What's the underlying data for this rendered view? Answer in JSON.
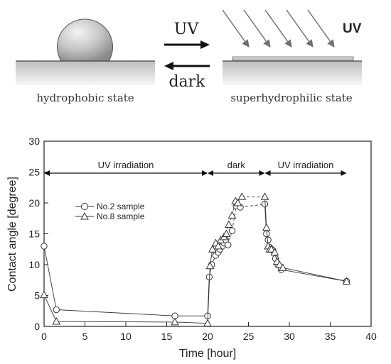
{
  "illustration": {
    "left_caption": "hydrophobic state",
    "right_caption": "superhydrophilic state",
    "arrow_top_label": "UV",
    "arrow_bottom_label": "dark",
    "uv_label": "UV"
  },
  "chart_data": {
    "type": "line",
    "xlabel": "Time [hour]",
    "ylabel": "Contact angle [degree]",
    "xlim": [
      0,
      40
    ],
    "ylim": [
      0,
      30
    ],
    "xticks": [
      "0",
      "5",
      "10",
      "15",
      "20",
      "25",
      "30",
      "35",
      "40"
    ],
    "yticks": [
      "0",
      "5",
      "10",
      "15",
      "20",
      "25",
      "30"
    ],
    "grid": false,
    "legend_position": "middle-left",
    "phases": [
      {
        "label": "UV irradiation",
        "x_start": 0,
        "x_end": 20
      },
      {
        "label": "dark",
        "x_start": 20,
        "x_end": 27
      },
      {
        "label": "UV irradiation",
        "x_start": 27,
        "x_end": 37
      }
    ],
    "series": [
      {
        "name": "No.2 sample",
        "marker": "circle",
        "x": [
          0,
          1.5,
          16,
          20,
          20.2,
          20.5,
          21,
          21.3,
          21.5,
          21.8,
          22,
          22.2,
          22.5,
          23,
          23.5,
          24,
          27,
          27.2,
          27.4,
          27.6,
          27.8,
          28,
          28.3,
          28.6,
          29,
          37
        ],
        "y": [
          13,
          2.7,
          1.7,
          1.7,
          8,
          10,
          11.5,
          12,
          12.5,
          13,
          13.5,
          14,
          13.2,
          15.5,
          19.5,
          19.3,
          19.8,
          15,
          14,
          12.8,
          12.5,
          12.3,
          11,
          10,
          9.2,
          7.3
        ]
      },
      {
        "name": "No.8 sample",
        "marker": "triangle",
        "x": [
          0,
          1.5,
          16,
          20,
          20.3,
          20.6,
          21,
          21.3,
          21.6,
          22,
          22.3,
          22.6,
          23,
          23.4,
          23.7,
          24.2,
          27,
          27.2,
          27.4,
          27.6,
          27.8,
          28.2,
          28.5,
          28.8,
          29.2,
          37
        ],
        "y": [
          5.1,
          0.8,
          0.7,
          0.5,
          9.8,
          12.5,
          13.5,
          13,
          14,
          14.5,
          15,
          16.5,
          18,
          20.3,
          20,
          21,
          21,
          16,
          13,
          12.5,
          12.5,
          12,
          10.5,
          10,
          9.5,
          7.3
        ]
      }
    ]
  }
}
